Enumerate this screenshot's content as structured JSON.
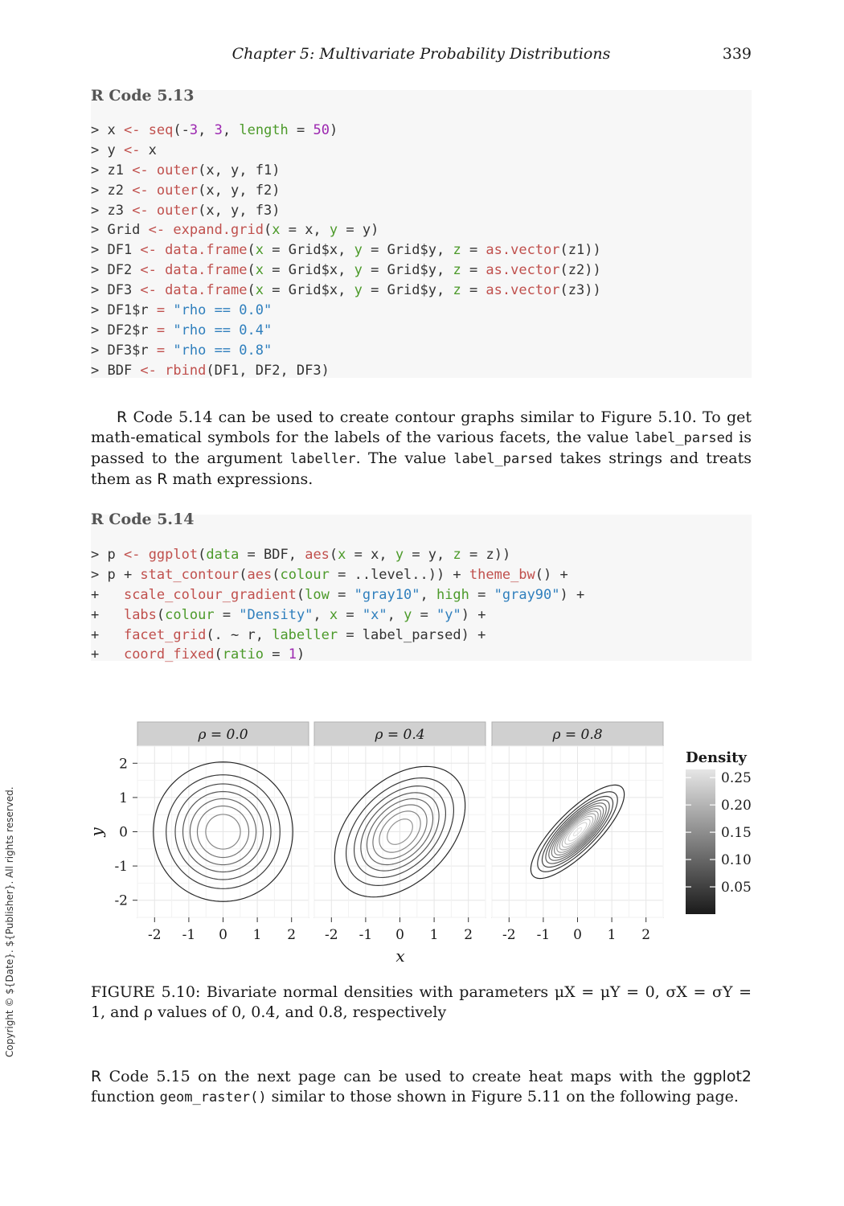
{
  "header": {
    "running_head": "Chapter  5:   Multivariate Probability Distributions",
    "page_number": "339"
  },
  "code_513": {
    "title": "R Code 5.13",
    "lines": [
      [
        {
          "t": "> x ",
          "c": "op"
        },
        {
          "t": "<-",
          "c": "fn"
        },
        {
          "t": " ",
          "c": "op"
        },
        {
          "t": "seq",
          "c": "fn"
        },
        {
          "t": "(-",
          "c": "op"
        },
        {
          "t": "3",
          "c": "num"
        },
        {
          "t": ", ",
          "c": "op"
        },
        {
          "t": "3",
          "c": "num"
        },
        {
          "t": ", ",
          "c": "op"
        },
        {
          "t": "length",
          "c": "arg"
        },
        {
          "t": " = ",
          "c": "op"
        },
        {
          "t": "50",
          "c": "num"
        },
        {
          "t": ")",
          "c": "op"
        }
      ],
      [
        {
          "t": "> y ",
          "c": "op"
        },
        {
          "t": "<-",
          "c": "fn"
        },
        {
          "t": " x",
          "c": "op"
        }
      ],
      [
        {
          "t": "> z1 ",
          "c": "op"
        },
        {
          "t": "<-",
          "c": "fn"
        },
        {
          "t": " ",
          "c": "op"
        },
        {
          "t": "outer",
          "c": "fn"
        },
        {
          "t": "(x, y, f1)",
          "c": "op"
        }
      ],
      [
        {
          "t": "> z2 ",
          "c": "op"
        },
        {
          "t": "<-",
          "c": "fn"
        },
        {
          "t": " ",
          "c": "op"
        },
        {
          "t": "outer",
          "c": "fn"
        },
        {
          "t": "(x, y, f2)",
          "c": "op"
        }
      ],
      [
        {
          "t": "> z3 ",
          "c": "op"
        },
        {
          "t": "<-",
          "c": "fn"
        },
        {
          "t": " ",
          "c": "op"
        },
        {
          "t": "outer",
          "c": "fn"
        },
        {
          "t": "(x, y, f3)",
          "c": "op"
        }
      ],
      [
        {
          "t": "> Grid ",
          "c": "op"
        },
        {
          "t": "<-",
          "c": "fn"
        },
        {
          "t": " ",
          "c": "op"
        },
        {
          "t": "expand.grid",
          "c": "fn"
        },
        {
          "t": "(",
          "c": "op"
        },
        {
          "t": "x",
          "c": "arg"
        },
        {
          "t": " = x, ",
          "c": "op"
        },
        {
          "t": "y",
          "c": "arg"
        },
        {
          "t": " = y)",
          "c": "op"
        }
      ],
      [
        {
          "t": "> DF1 ",
          "c": "op"
        },
        {
          "t": "<-",
          "c": "fn"
        },
        {
          "t": " ",
          "c": "op"
        },
        {
          "t": "data.frame",
          "c": "fn"
        },
        {
          "t": "(",
          "c": "op"
        },
        {
          "t": "x",
          "c": "arg"
        },
        {
          "t": " = Grid$x, ",
          "c": "op"
        },
        {
          "t": "y",
          "c": "arg"
        },
        {
          "t": " = Grid$y, ",
          "c": "op"
        },
        {
          "t": "z",
          "c": "arg"
        },
        {
          "t": " = ",
          "c": "op"
        },
        {
          "t": "as.vector",
          "c": "fn"
        },
        {
          "t": "(z1))",
          "c": "op"
        }
      ],
      [
        {
          "t": "> DF2 ",
          "c": "op"
        },
        {
          "t": "<-",
          "c": "fn"
        },
        {
          "t": " ",
          "c": "op"
        },
        {
          "t": "data.frame",
          "c": "fn"
        },
        {
          "t": "(",
          "c": "op"
        },
        {
          "t": "x",
          "c": "arg"
        },
        {
          "t": " = Grid$x, ",
          "c": "op"
        },
        {
          "t": "y",
          "c": "arg"
        },
        {
          "t": " = Grid$y, ",
          "c": "op"
        },
        {
          "t": "z",
          "c": "arg"
        },
        {
          "t": " = ",
          "c": "op"
        },
        {
          "t": "as.vector",
          "c": "fn"
        },
        {
          "t": "(z2))",
          "c": "op"
        }
      ],
      [
        {
          "t": "> DF3 ",
          "c": "op"
        },
        {
          "t": "<-",
          "c": "fn"
        },
        {
          "t": " ",
          "c": "op"
        },
        {
          "t": "data.frame",
          "c": "fn"
        },
        {
          "t": "(",
          "c": "op"
        },
        {
          "t": "x",
          "c": "arg"
        },
        {
          "t": " = Grid$x, ",
          "c": "op"
        },
        {
          "t": "y",
          "c": "arg"
        },
        {
          "t": " = Grid$y, ",
          "c": "op"
        },
        {
          "t": "z",
          "c": "arg"
        },
        {
          "t": " = ",
          "c": "op"
        },
        {
          "t": "as.vector",
          "c": "fn"
        },
        {
          "t": "(z3))",
          "c": "op"
        }
      ],
      [
        {
          "t": "> DF1$r ",
          "c": "op"
        },
        {
          "t": "=",
          "c": "fn"
        },
        {
          "t": " ",
          "c": "op"
        },
        {
          "t": "\"rho == 0.0\"",
          "c": "str"
        }
      ],
      [
        {
          "t": "> DF2$r ",
          "c": "op"
        },
        {
          "t": "=",
          "c": "fn"
        },
        {
          "t": " ",
          "c": "op"
        },
        {
          "t": "\"rho == 0.4\"",
          "c": "str"
        }
      ],
      [
        {
          "t": "> DF3$r ",
          "c": "op"
        },
        {
          "t": "=",
          "c": "fn"
        },
        {
          "t": " ",
          "c": "op"
        },
        {
          "t": "\"rho == 0.8\"",
          "c": "str"
        }
      ],
      [
        {
          "t": "> BDF ",
          "c": "op"
        },
        {
          "t": "<-",
          "c": "fn"
        },
        {
          "t": " ",
          "c": "op"
        },
        {
          "t": "rbind",
          "c": "fn"
        },
        {
          "t": "(DF1, DF2, DF3)",
          "c": "op"
        }
      ]
    ]
  },
  "paragraph1": {
    "parts": [
      {
        "t": "R",
        "c": "sans"
      },
      {
        "t": " Code 5.14 can be used to create contour graphs similar to Figure 5.10. To get math-ematical symbols for the labels of the various facets, the value ",
        "c": ""
      },
      {
        "t": "label_parsed",
        "c": "mono"
      },
      {
        "t": " is passed to the argument ",
        "c": ""
      },
      {
        "t": "labeller",
        "c": "mono"
      },
      {
        "t": ". The value ",
        "c": ""
      },
      {
        "t": "label_parsed",
        "c": "mono"
      },
      {
        "t": " takes strings and treats them as ",
        "c": ""
      },
      {
        "t": "R",
        "c": "sans"
      },
      {
        "t": " math expressions.",
        "c": ""
      }
    ]
  },
  "code_514": {
    "title": "R Code 5.14",
    "lines": [
      [
        {
          "t": "> p ",
          "c": "op"
        },
        {
          "t": "<-",
          "c": "fn"
        },
        {
          "t": " ",
          "c": "op"
        },
        {
          "t": "ggplot",
          "c": "fn"
        },
        {
          "t": "(",
          "c": "op"
        },
        {
          "t": "data",
          "c": "arg"
        },
        {
          "t": " = BDF, ",
          "c": "op"
        },
        {
          "t": "aes",
          "c": "fn"
        },
        {
          "t": "(",
          "c": "op"
        },
        {
          "t": "x",
          "c": "arg"
        },
        {
          "t": " = x, ",
          "c": "op"
        },
        {
          "t": "y",
          "c": "arg"
        },
        {
          "t": " = y, ",
          "c": "op"
        },
        {
          "t": "z",
          "c": "arg"
        },
        {
          "t": " = z))",
          "c": "op"
        }
      ],
      [
        {
          "t": "> p + ",
          "c": "op"
        },
        {
          "t": "stat_contour",
          "c": "fn"
        },
        {
          "t": "(",
          "c": "op"
        },
        {
          "t": "aes",
          "c": "fn"
        },
        {
          "t": "(",
          "c": "op"
        },
        {
          "t": "colour",
          "c": "arg"
        },
        {
          "t": " = ..level..)) + ",
          "c": "op"
        },
        {
          "t": "theme_bw",
          "c": "fn"
        },
        {
          "t": "() +",
          "c": "op"
        }
      ],
      [
        {
          "t": "+   ",
          "c": "op"
        },
        {
          "t": "scale_colour_gradient",
          "c": "fn"
        },
        {
          "t": "(",
          "c": "op"
        },
        {
          "t": "low",
          "c": "arg"
        },
        {
          "t": " = ",
          "c": "op"
        },
        {
          "t": "\"gray10\"",
          "c": "str"
        },
        {
          "t": ", ",
          "c": "op"
        },
        {
          "t": "high",
          "c": "arg"
        },
        {
          "t": " = ",
          "c": "op"
        },
        {
          "t": "\"gray90\"",
          "c": "str"
        },
        {
          "t": ") +",
          "c": "op"
        }
      ],
      [
        {
          "t": "+   ",
          "c": "op"
        },
        {
          "t": "labs",
          "c": "fn"
        },
        {
          "t": "(",
          "c": "op"
        },
        {
          "t": "colour",
          "c": "arg"
        },
        {
          "t": " = ",
          "c": "op"
        },
        {
          "t": "\"Density\"",
          "c": "str"
        },
        {
          "t": ", ",
          "c": "op"
        },
        {
          "t": "x",
          "c": "arg"
        },
        {
          "t": " = ",
          "c": "op"
        },
        {
          "t": "\"x\"",
          "c": "str"
        },
        {
          "t": ", ",
          "c": "op"
        },
        {
          "t": "y",
          "c": "arg"
        },
        {
          "t": " = ",
          "c": "op"
        },
        {
          "t": "\"y\"",
          "c": "str"
        },
        {
          "t": ") +",
          "c": "op"
        }
      ],
      [
        {
          "t": "+   ",
          "c": "op"
        },
        {
          "t": "facet_grid",
          "c": "fn"
        },
        {
          "t": "(. ~ r, ",
          "c": "op"
        },
        {
          "t": "labeller",
          "c": "arg"
        },
        {
          "t": " = label_parsed) +",
          "c": "op"
        }
      ],
      [
        {
          "t": "+   ",
          "c": "op"
        },
        {
          "t": "coord_fixed",
          "c": "fn"
        },
        {
          "t": "(",
          "c": "op"
        },
        {
          "t": "ratio",
          "c": "arg"
        },
        {
          "t": " = ",
          "c": "op"
        },
        {
          "t": "1",
          "c": "num"
        },
        {
          "t": ")",
          "c": "op"
        }
      ]
    ]
  },
  "chart_data": {
    "type": "contour",
    "facets": [
      {
        "label": "ρ = 0.0",
        "rho": 0.0
      },
      {
        "label": "ρ = 0.4",
        "rho": 0.4
      },
      {
        "label": "ρ = 0.8",
        "rho": 0.8
      }
    ],
    "x_ticks": [
      "-2",
      "-1",
      "0",
      "1",
      "2"
    ],
    "y_ticks": [
      "2",
      "1",
      "0",
      "-1",
      "-2"
    ],
    "x_tick_values": [
      -2,
      -1,
      0,
      1,
      2
    ],
    "y_tick_values": [
      2,
      1,
      0,
      -1,
      -2
    ],
    "xlim": [
      -2.5,
      2.5
    ],
    "ylim": [
      -2.5,
      2.5
    ],
    "xlabel": "x",
    "ylabel": "y",
    "levels": [
      0.02,
      0.04,
      0.06,
      0.08,
      0.1,
      0.12,
      0.14,
      0.16,
      0.18,
      0.2,
      0.22,
      0.24,
      0.26
    ],
    "legend": {
      "title": "Density",
      "ticks": [
        "0.25",
        "0.20",
        "0.15",
        "0.10",
        "0.05"
      ],
      "tick_values": [
        0.25,
        0.2,
        0.15,
        0.1,
        0.05
      ],
      "range": [
        0.0,
        0.265
      ],
      "low": "#1a1a1a",
      "high": "#e6e6e6",
      "position": "right"
    },
    "grid": true,
    "strip_color": "#d0d0d0"
  },
  "caption": {
    "text": "FIGURE 5.10: Bivariate normal densities with parameters μX = μY = 0, σX = σY = 1, and ρ values of 0, 0.4, and 0.8, respectively"
  },
  "paragraph2": {
    "parts": [
      {
        "t": "R",
        "c": "sans"
      },
      {
        "t": " Code 5.15 on the next page can be used to create heat maps with the ",
        "c": ""
      },
      {
        "t": "ggplot2",
        "c": "sans"
      },
      {
        "t": " function ",
        "c": ""
      },
      {
        "t": "geom_raster()",
        "c": "mono"
      },
      {
        "t": " similar to those shown in Figure 5.11 on the following page.",
        "c": ""
      }
    ]
  },
  "side_note": "Copyright © ${Date}. ${Publisher}. All rights reserved."
}
